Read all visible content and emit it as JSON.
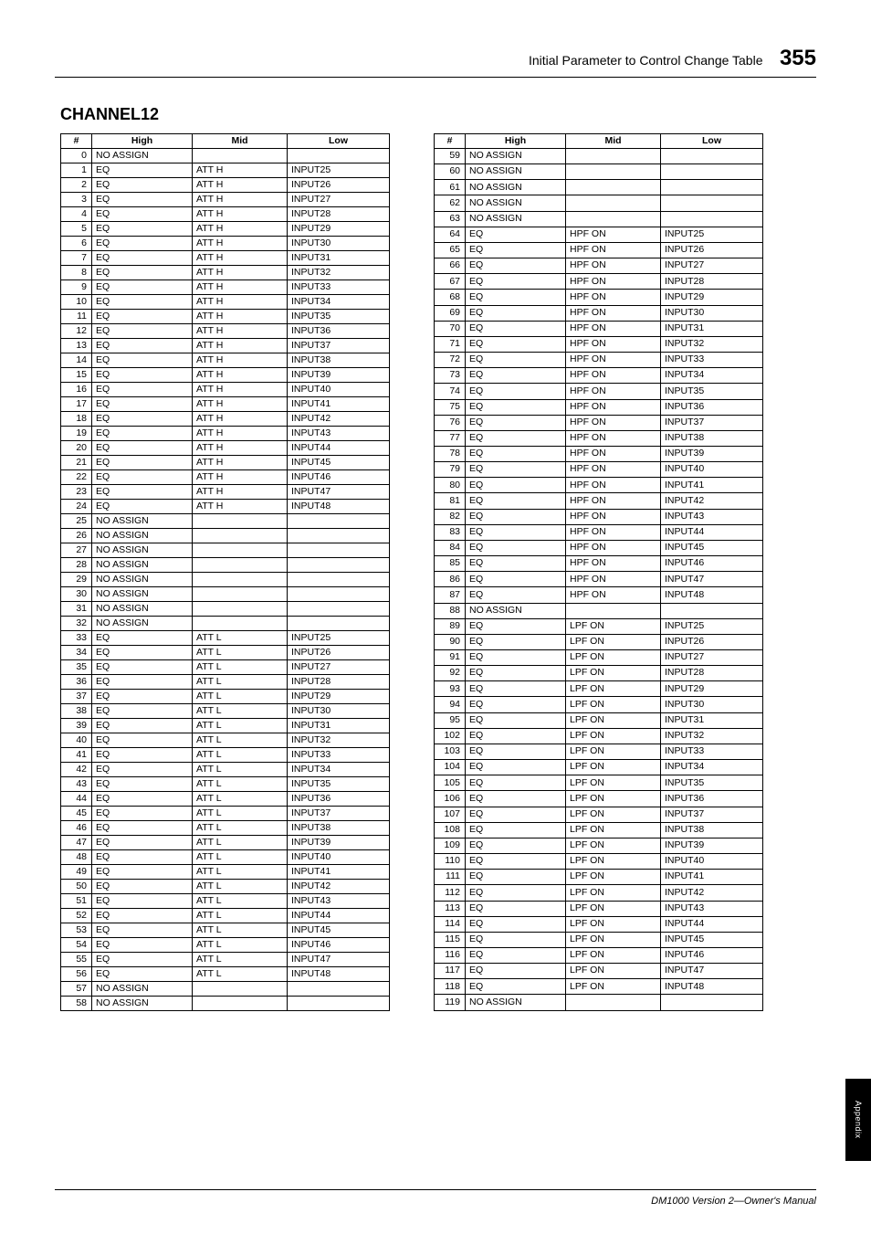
{
  "header": {
    "title": "Initial Parameter to Control Change Table",
    "page_number": "355"
  },
  "section_title": "CHANNEL12",
  "columns": [
    "#",
    "High",
    "Mid",
    "Low"
  ],
  "left_rows": [
    [
      "0",
      "NO ASSIGN",
      "",
      ""
    ],
    [
      "1",
      "EQ",
      "ATT H",
      "INPUT25"
    ],
    [
      "2",
      "EQ",
      "ATT H",
      "INPUT26"
    ],
    [
      "3",
      "EQ",
      "ATT H",
      "INPUT27"
    ],
    [
      "4",
      "EQ",
      "ATT H",
      "INPUT28"
    ],
    [
      "5",
      "EQ",
      "ATT H",
      "INPUT29"
    ],
    [
      "6",
      "EQ",
      "ATT H",
      "INPUT30"
    ],
    [
      "7",
      "EQ",
      "ATT H",
      "INPUT31"
    ],
    [
      "8",
      "EQ",
      "ATT H",
      "INPUT32"
    ],
    [
      "9",
      "EQ",
      "ATT H",
      "INPUT33"
    ],
    [
      "10",
      "EQ",
      "ATT H",
      "INPUT34"
    ],
    [
      "11",
      "EQ",
      "ATT H",
      "INPUT35"
    ],
    [
      "12",
      "EQ",
      "ATT H",
      "INPUT36"
    ],
    [
      "13",
      "EQ",
      "ATT H",
      "INPUT37"
    ],
    [
      "14",
      "EQ",
      "ATT H",
      "INPUT38"
    ],
    [
      "15",
      "EQ",
      "ATT H",
      "INPUT39"
    ],
    [
      "16",
      "EQ",
      "ATT H",
      "INPUT40"
    ],
    [
      "17",
      "EQ",
      "ATT H",
      "INPUT41"
    ],
    [
      "18",
      "EQ",
      "ATT H",
      "INPUT42"
    ],
    [
      "19",
      "EQ",
      "ATT H",
      "INPUT43"
    ],
    [
      "20",
      "EQ",
      "ATT H",
      "INPUT44"
    ],
    [
      "21",
      "EQ",
      "ATT H",
      "INPUT45"
    ],
    [
      "22",
      "EQ",
      "ATT H",
      "INPUT46"
    ],
    [
      "23",
      "EQ",
      "ATT H",
      "INPUT47"
    ],
    [
      "24",
      "EQ",
      "ATT H",
      "INPUT48"
    ],
    [
      "25",
      "NO ASSIGN",
      "",
      ""
    ],
    [
      "26",
      "NO ASSIGN",
      "",
      ""
    ],
    [
      "27",
      "NO ASSIGN",
      "",
      ""
    ],
    [
      "28",
      "NO ASSIGN",
      "",
      ""
    ],
    [
      "29",
      "NO ASSIGN",
      "",
      ""
    ],
    [
      "30",
      "NO ASSIGN",
      "",
      ""
    ],
    [
      "31",
      "NO ASSIGN",
      "",
      ""
    ],
    [
      "32",
      "NO ASSIGN",
      "",
      ""
    ],
    [
      "33",
      "EQ",
      "ATT L",
      "INPUT25"
    ],
    [
      "34",
      "EQ",
      "ATT L",
      "INPUT26"
    ],
    [
      "35",
      "EQ",
      "ATT L",
      "INPUT27"
    ],
    [
      "36",
      "EQ",
      "ATT L",
      "INPUT28"
    ],
    [
      "37",
      "EQ",
      "ATT L",
      "INPUT29"
    ],
    [
      "38",
      "EQ",
      "ATT L",
      "INPUT30"
    ],
    [
      "39",
      "EQ",
      "ATT L",
      "INPUT31"
    ],
    [
      "40",
      "EQ",
      "ATT L",
      "INPUT32"
    ],
    [
      "41",
      "EQ",
      "ATT L",
      "INPUT33"
    ],
    [
      "42",
      "EQ",
      "ATT L",
      "INPUT34"
    ],
    [
      "43",
      "EQ",
      "ATT L",
      "INPUT35"
    ],
    [
      "44",
      "EQ",
      "ATT L",
      "INPUT36"
    ],
    [
      "45",
      "EQ",
      "ATT L",
      "INPUT37"
    ],
    [
      "46",
      "EQ",
      "ATT L",
      "INPUT38"
    ],
    [
      "47",
      "EQ",
      "ATT L",
      "INPUT39"
    ],
    [
      "48",
      "EQ",
      "ATT L",
      "INPUT40"
    ],
    [
      "49",
      "EQ",
      "ATT L",
      "INPUT41"
    ],
    [
      "50",
      "EQ",
      "ATT L",
      "INPUT42"
    ],
    [
      "51",
      "EQ",
      "ATT L",
      "INPUT43"
    ],
    [
      "52",
      "EQ",
      "ATT L",
      "INPUT44"
    ],
    [
      "53",
      "EQ",
      "ATT L",
      "INPUT45"
    ],
    [
      "54",
      "EQ",
      "ATT L",
      "INPUT46"
    ],
    [
      "55",
      "EQ",
      "ATT L",
      "INPUT47"
    ],
    [
      "56",
      "EQ",
      "ATT L",
      "INPUT48"
    ],
    [
      "57",
      "NO ASSIGN",
      "",
      ""
    ],
    [
      "58",
      "NO ASSIGN",
      "",
      ""
    ]
  ],
  "right_rows": [
    [
      "59",
      "NO ASSIGN",
      "",
      ""
    ],
    [
      "60",
      "NO ASSIGN",
      "",
      ""
    ],
    [
      "61",
      "NO ASSIGN",
      "",
      ""
    ],
    [
      "62",
      "NO ASSIGN",
      "",
      ""
    ],
    [
      "63",
      "NO ASSIGN",
      "",
      ""
    ],
    [
      "64",
      "EQ",
      "HPF ON",
      "INPUT25"
    ],
    [
      "65",
      "EQ",
      "HPF ON",
      "INPUT26"
    ],
    [
      "66",
      "EQ",
      "HPF ON",
      "INPUT27"
    ],
    [
      "67",
      "EQ",
      "HPF ON",
      "INPUT28"
    ],
    [
      "68",
      "EQ",
      "HPF ON",
      "INPUT29"
    ],
    [
      "69",
      "EQ",
      "HPF ON",
      "INPUT30"
    ],
    [
      "70",
      "EQ",
      "HPF ON",
      "INPUT31"
    ],
    [
      "71",
      "EQ",
      "HPF ON",
      "INPUT32"
    ],
    [
      "72",
      "EQ",
      "HPF ON",
      "INPUT33"
    ],
    [
      "73",
      "EQ",
      "HPF ON",
      "INPUT34"
    ],
    [
      "74",
      "EQ",
      "HPF ON",
      "INPUT35"
    ],
    [
      "75",
      "EQ",
      "HPF ON",
      "INPUT36"
    ],
    [
      "76",
      "EQ",
      "HPF ON",
      "INPUT37"
    ],
    [
      "77",
      "EQ",
      "HPF ON",
      "INPUT38"
    ],
    [
      "78",
      "EQ",
      "HPF ON",
      "INPUT39"
    ],
    [
      "79",
      "EQ",
      "HPF ON",
      "INPUT40"
    ],
    [
      "80",
      "EQ",
      "HPF ON",
      "INPUT41"
    ],
    [
      "81",
      "EQ",
      "HPF ON",
      "INPUT42"
    ],
    [
      "82",
      "EQ",
      "HPF ON",
      "INPUT43"
    ],
    [
      "83",
      "EQ",
      "HPF ON",
      "INPUT44"
    ],
    [
      "84",
      "EQ",
      "HPF ON",
      "INPUT45"
    ],
    [
      "85",
      "EQ",
      "HPF ON",
      "INPUT46"
    ],
    [
      "86",
      "EQ",
      "HPF ON",
      "INPUT47"
    ],
    [
      "87",
      "EQ",
      "HPF ON",
      "INPUT48"
    ],
    [
      "88",
      "NO ASSIGN",
      "",
      ""
    ],
    [
      "89",
      "EQ",
      "LPF ON",
      "INPUT25"
    ],
    [
      "90",
      "EQ",
      "LPF ON",
      "INPUT26"
    ],
    [
      "91",
      "EQ",
      "LPF ON",
      "INPUT27"
    ],
    [
      "92",
      "EQ",
      "LPF ON",
      "INPUT28"
    ],
    [
      "93",
      "EQ",
      "LPF ON",
      "INPUT29"
    ],
    [
      "94",
      "EQ",
      "LPF ON",
      "INPUT30"
    ],
    [
      "95",
      "EQ",
      "LPF ON",
      "INPUT31"
    ],
    [
      "102",
      "EQ",
      "LPF ON",
      "INPUT32"
    ],
    [
      "103",
      "EQ",
      "LPF ON",
      "INPUT33"
    ],
    [
      "104",
      "EQ",
      "LPF ON",
      "INPUT34"
    ],
    [
      "105",
      "EQ",
      "LPF ON",
      "INPUT35"
    ],
    [
      "106",
      "EQ",
      "LPF ON",
      "INPUT36"
    ],
    [
      "107",
      "EQ",
      "LPF ON",
      "INPUT37"
    ],
    [
      "108",
      "EQ",
      "LPF ON",
      "INPUT38"
    ],
    [
      "109",
      "EQ",
      "LPF ON",
      "INPUT39"
    ],
    [
      "110",
      "EQ",
      "LPF ON",
      "INPUT40"
    ],
    [
      "111",
      "EQ",
      "LPF ON",
      "INPUT41"
    ],
    [
      "112",
      "EQ",
      "LPF ON",
      "INPUT42"
    ],
    [
      "113",
      "EQ",
      "LPF ON",
      "INPUT43"
    ],
    [
      "114",
      "EQ",
      "LPF ON",
      "INPUT44"
    ],
    [
      "115",
      "EQ",
      "LPF ON",
      "INPUT45"
    ],
    [
      "116",
      "EQ",
      "LPF ON",
      "INPUT46"
    ],
    [
      "117",
      "EQ",
      "LPF ON",
      "INPUT47"
    ],
    [
      "118",
      "EQ",
      "LPF ON",
      "INPUT48"
    ],
    [
      "119",
      "NO ASSIGN",
      "",
      ""
    ]
  ],
  "side_tab": "Appendix",
  "footer": "DM1000 Version 2—Owner's Manual"
}
